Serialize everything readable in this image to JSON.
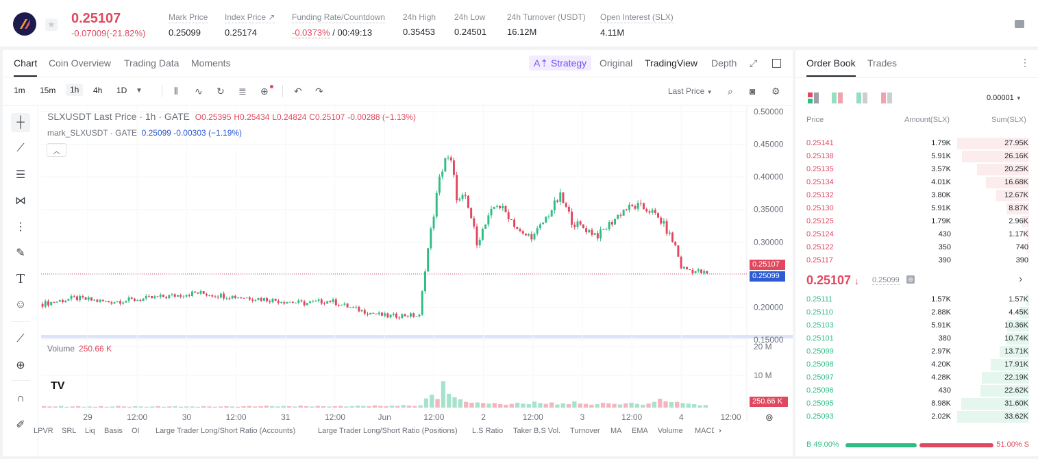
{
  "header": {
    "last_price": "0.25107",
    "change": "-0.07009(-21.82%)",
    "stats": [
      {
        "label": "Mark Price",
        "value": "0.25099"
      },
      {
        "label": "Index Price ↗",
        "value": "0.25174"
      },
      {
        "label": "Funding Rate/Countdown",
        "value_neg": "-0.0373%",
        "value": " / 00:49:13"
      },
      {
        "label": "24h High",
        "value": "0.35453"
      },
      {
        "label": "24h Low",
        "value": "0.24501"
      },
      {
        "label": "24h Turnover (USDT)",
        "value": "16.12M"
      },
      {
        "label": "Open Interest (SLX)",
        "value": "4.11M"
      }
    ]
  },
  "chart_tabs": {
    "chart": "Chart",
    "coin_overview": "Coin Overview",
    "trading_data": "Trading Data",
    "moments": "Moments",
    "strategy": "Strategy",
    "original": "Original",
    "tradingview": "TradingView",
    "depth": "Depth"
  },
  "toolbar": {
    "timeframes": [
      "1m",
      "15m",
      "1h",
      "4h",
      "1D"
    ],
    "last_price_select": "Last Price"
  },
  "legend": {
    "symbol": "SLXUSDT Last Price · 1h · GATE",
    "o": "O0.25395",
    "h": "H0.25434",
    "l": "L0.24824",
    "c": "C0.25107",
    "chg": "-0.00288 (−1.13%)",
    "mark_label": "mark_SLXUSDT · GATE",
    "mark_value": "0.25099 -0.00303 (−1.19%)",
    "volume_label": "Volume",
    "volume_value": "250.66 K"
  },
  "price_labels": {
    "last": "0.25107",
    "mark": "0.25099",
    "volume": "250.66 K"
  },
  "chart_data": {
    "type": "candlestick",
    "title": "SLXUSDT Last Price · 1h · GATE",
    "y_ticks": [
      "0.50000",
      "0.45000",
      "0.40000",
      "0.35000",
      "0.30000",
      "0.25000",
      "0.20000",
      "0.15000"
    ],
    "volume_ticks": [
      "20 M",
      "10 M"
    ],
    "x_ticks": [
      "29",
      "12:00",
      "30",
      "12:00",
      "31",
      "12:00",
      "Jun",
      "12:00",
      "2",
      "12:00",
      "3",
      "12:00",
      "4",
      "12:00"
    ],
    "ylim": [
      0.15,
      0.5
    ],
    "close_path": [
      [
        0,
        0.205
      ],
      [
        10,
        0.214
      ],
      [
        20,
        0.208
      ],
      [
        30,
        0.212
      ],
      [
        40,
        0.217
      ],
      [
        48,
        0.222
      ],
      [
        56,
        0.218
      ],
      [
        66,
        0.214
      ],
      [
        74,
        0.21
      ],
      [
        82,
        0.206
      ],
      [
        90,
        0.21
      ],
      [
        96,
        0.2
      ],
      [
        102,
        0.192
      ],
      [
        108,
        0.186
      ],
      [
        114,
        0.188
      ],
      [
        118,
        0.186
      ],
      [
        120,
        0.27
      ],
      [
        122,
        0.33
      ],
      [
        124,
        0.39
      ],
      [
        126,
        0.43
      ],
      [
        128,
        0.42
      ],
      [
        130,
        0.36
      ],
      [
        132,
        0.37
      ],
      [
        134,
        0.34
      ],
      [
        136,
        0.3
      ],
      [
        138,
        0.32
      ],
      [
        142,
        0.36
      ],
      [
        146,
        0.34
      ],
      [
        150,
        0.31
      ],
      [
        154,
        0.31
      ],
      [
        158,
        0.34
      ],
      [
        162,
        0.37
      ],
      [
        166,
        0.33
      ],
      [
        170,
        0.32
      ],
      [
        174,
        0.31
      ],
      [
        178,
        0.33
      ],
      [
        182,
        0.35
      ],
      [
        186,
        0.355
      ],
      [
        190,
        0.349
      ],
      [
        194,
        0.33
      ],
      [
        198,
        0.295
      ],
      [
        200,
        0.26
      ],
      [
        204,
        0.256
      ],
      [
        208,
        0.251
      ]
    ],
    "volume_series": [
      0.5,
      0.4,
      0.4,
      0.6,
      0.3,
      0.4,
      0.5,
      0.3,
      0.4,
      0.3,
      0.5,
      0.3,
      0.4,
      0.6,
      0.4,
      0.3,
      0.5,
      0.4,
      0.3,
      0.4,
      0.5,
      0.3,
      0.4,
      0.5,
      0.3,
      0.4,
      0.4,
      0.3,
      0.5,
      0.4,
      0.3,
      0.4,
      0.5,
      0.4,
      0.3,
      0.5,
      0.6,
      0.4,
      0.5,
      0.7,
      0.5,
      0.4,
      0.6,
      0.5,
      0.4,
      0.7,
      0.5,
      0.4,
      0.6,
      0.5,
      0.4,
      0.5,
      0.6,
      0.4,
      0.5,
      0.7,
      0.6,
      0.5,
      0.8,
      0.6,
      0.5,
      0.7,
      0.6,
      0.9,
      0.7,
      0.6,
      0.8,
      3.2,
      4.5,
      3.0,
      9.2,
      4.8,
      3.6,
      2.9,
      2.0,
      1.7,
      1.8,
      1.6,
      1.4,
      1.6,
      1.2,
      1.0,
      1.3,
      1.7,
      1.4,
      1.2,
      2.1,
      1.6,
      1.3,
      1.8,
      1.1,
      1.5,
      1.2,
      2.2,
      1.4,
      1.3,
      1.0,
      1.2,
      1.7,
      1.5,
      1.3,
      1.1,
      1.5,
      1.7,
      1.3,
      1.0,
      1.4,
      2.0,
      3.1,
      2.2,
      1.9,
      2.0,
      1.6,
      1.4,
      1.2,
      0.8,
      0.9
    ]
  },
  "drawing_tools": [
    "crosshair-icon",
    "trendline-icon",
    "horizontal-lines-icon",
    "pattern-icon",
    "fib-icon",
    "brush-icon",
    "text-icon",
    "emoji-icon",
    "ruler-icon",
    "zoom-icon",
    "magnet-icon",
    "pencil-icon"
  ],
  "indicators": [
    "LPVR",
    "SRL",
    "Liq",
    "Basis",
    "OI",
    "Large Trader Long/Short Ratio (Accounts)",
    "Large Trader Long/Short Ratio (Positions)",
    "L.S Ratio",
    "Taker B.S Vol.",
    "Turnover",
    "MA",
    "EMA",
    "Volume",
    "MACD"
  ],
  "orderbook": {
    "tab_book": "Order Book",
    "tab_trades": "Trades",
    "precision": "0.00001",
    "col_price": "Price",
    "col_amount": "Amount(SLX)",
    "col_sum": "Sum(SLX)",
    "asks": [
      {
        "price": "0.25141",
        "amount": "1.79K",
        "sum": "27.95K",
        "depth": 1.0
      },
      {
        "price": "0.25138",
        "amount": "5.91K",
        "sum": "26.16K",
        "depth": 0.936
      },
      {
        "price": "0.25135",
        "amount": "3.57K",
        "sum": "20.25K",
        "depth": 0.725
      },
      {
        "price": "0.25134",
        "amount": "4.01K",
        "sum": "16.68K",
        "depth": 0.597
      },
      {
        "price": "0.25132",
        "amount": "3.80K",
        "sum": "12.67K",
        "depth": 0.453
      },
      {
        "price": "0.25130",
        "amount": "5.91K",
        "sum": "8.87K",
        "depth": 0.317
      },
      {
        "price": "0.25125",
        "amount": "1.79K",
        "sum": "2.96K",
        "depth": 0.106
      },
      {
        "price": "0.25124",
        "amount": "430",
        "sum": "1.17K",
        "depth": 0.042
      },
      {
        "price": "0.25122",
        "amount": "350",
        "sum": "740",
        "depth": 0.026
      },
      {
        "price": "0.25117",
        "amount": "390",
        "sum": "390",
        "depth": 0.014
      }
    ],
    "mid_price": "0.25107",
    "mid_mark": "0.25099",
    "bids": [
      {
        "price": "0.25111",
        "amount": "1.57K",
        "sum": "1.57K",
        "depth": 0.047
      },
      {
        "price": "0.25110",
        "amount": "2.88K",
        "sum": "4.45K",
        "depth": 0.132
      },
      {
        "price": "0.25103",
        "amount": "5.91K",
        "sum": "10.36K",
        "depth": 0.308
      },
      {
        "price": "0.25101",
        "amount": "380",
        "sum": "10.74K",
        "depth": 0.319
      },
      {
        "price": "0.25099",
        "amount": "2.97K",
        "sum": "13.71K",
        "depth": 0.408
      },
      {
        "price": "0.25098",
        "amount": "4.20K",
        "sum": "17.91K",
        "depth": 0.533
      },
      {
        "price": "0.25097",
        "amount": "4.28K",
        "sum": "22.19K",
        "depth": 0.66
      },
      {
        "price": "0.25096",
        "amount": "430",
        "sum": "22.62K",
        "depth": 0.673
      },
      {
        "price": "0.25095",
        "amount": "8.98K",
        "sum": "31.60K",
        "depth": 0.94
      },
      {
        "price": "0.25093",
        "amount": "2.02K",
        "sum": "33.62K",
        "depth": 1.0
      }
    ],
    "buy_ratio": "B 49.00%",
    "sell_ratio": "51.00% S",
    "buy_fraction": 0.49
  },
  "colors": {
    "up": "#2ebd85",
    "down": "#e0485f",
    "accent": "#7a4df5",
    "mark": "#2d5bd1"
  }
}
